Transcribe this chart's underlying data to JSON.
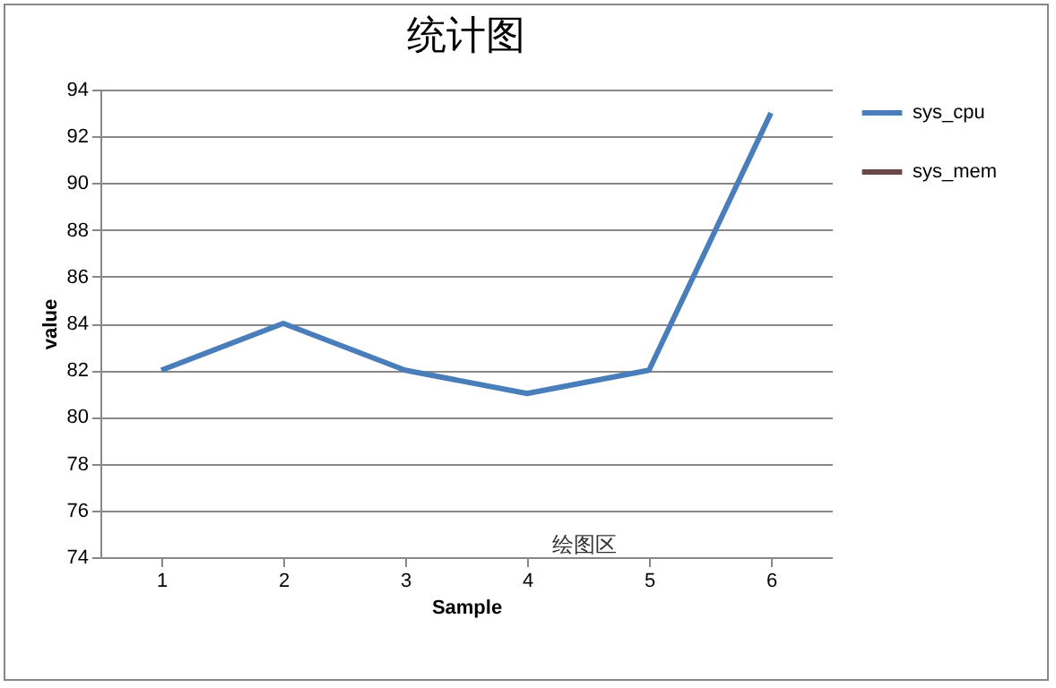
{
  "chart_data": {
    "type": "line",
    "title": "统计图",
    "xlabel": "Sample",
    "ylabel": "value",
    "categories": [
      "1",
      "2",
      "3",
      "4",
      "5",
      "6"
    ],
    "series": [
      {
        "name": "sys_cpu",
        "color": "#4a7ebb",
        "values": [
          82,
          84,
          82,
          81,
          82,
          93
        ]
      },
      {
        "name": "sys_mem",
        "color": "#6b4848",
        "values": [
          null,
          null,
          null,
          null,
          null,
          null
        ]
      }
    ],
    "ylim": [
      74,
      94
    ],
    "yticks": [
      74,
      76,
      78,
      80,
      82,
      84,
      86,
      88,
      90,
      92,
      94
    ],
    "grid": "y",
    "legend": "right",
    "marker": "none",
    "line_style": "solid",
    "annotations": [
      "绘图区"
    ]
  }
}
